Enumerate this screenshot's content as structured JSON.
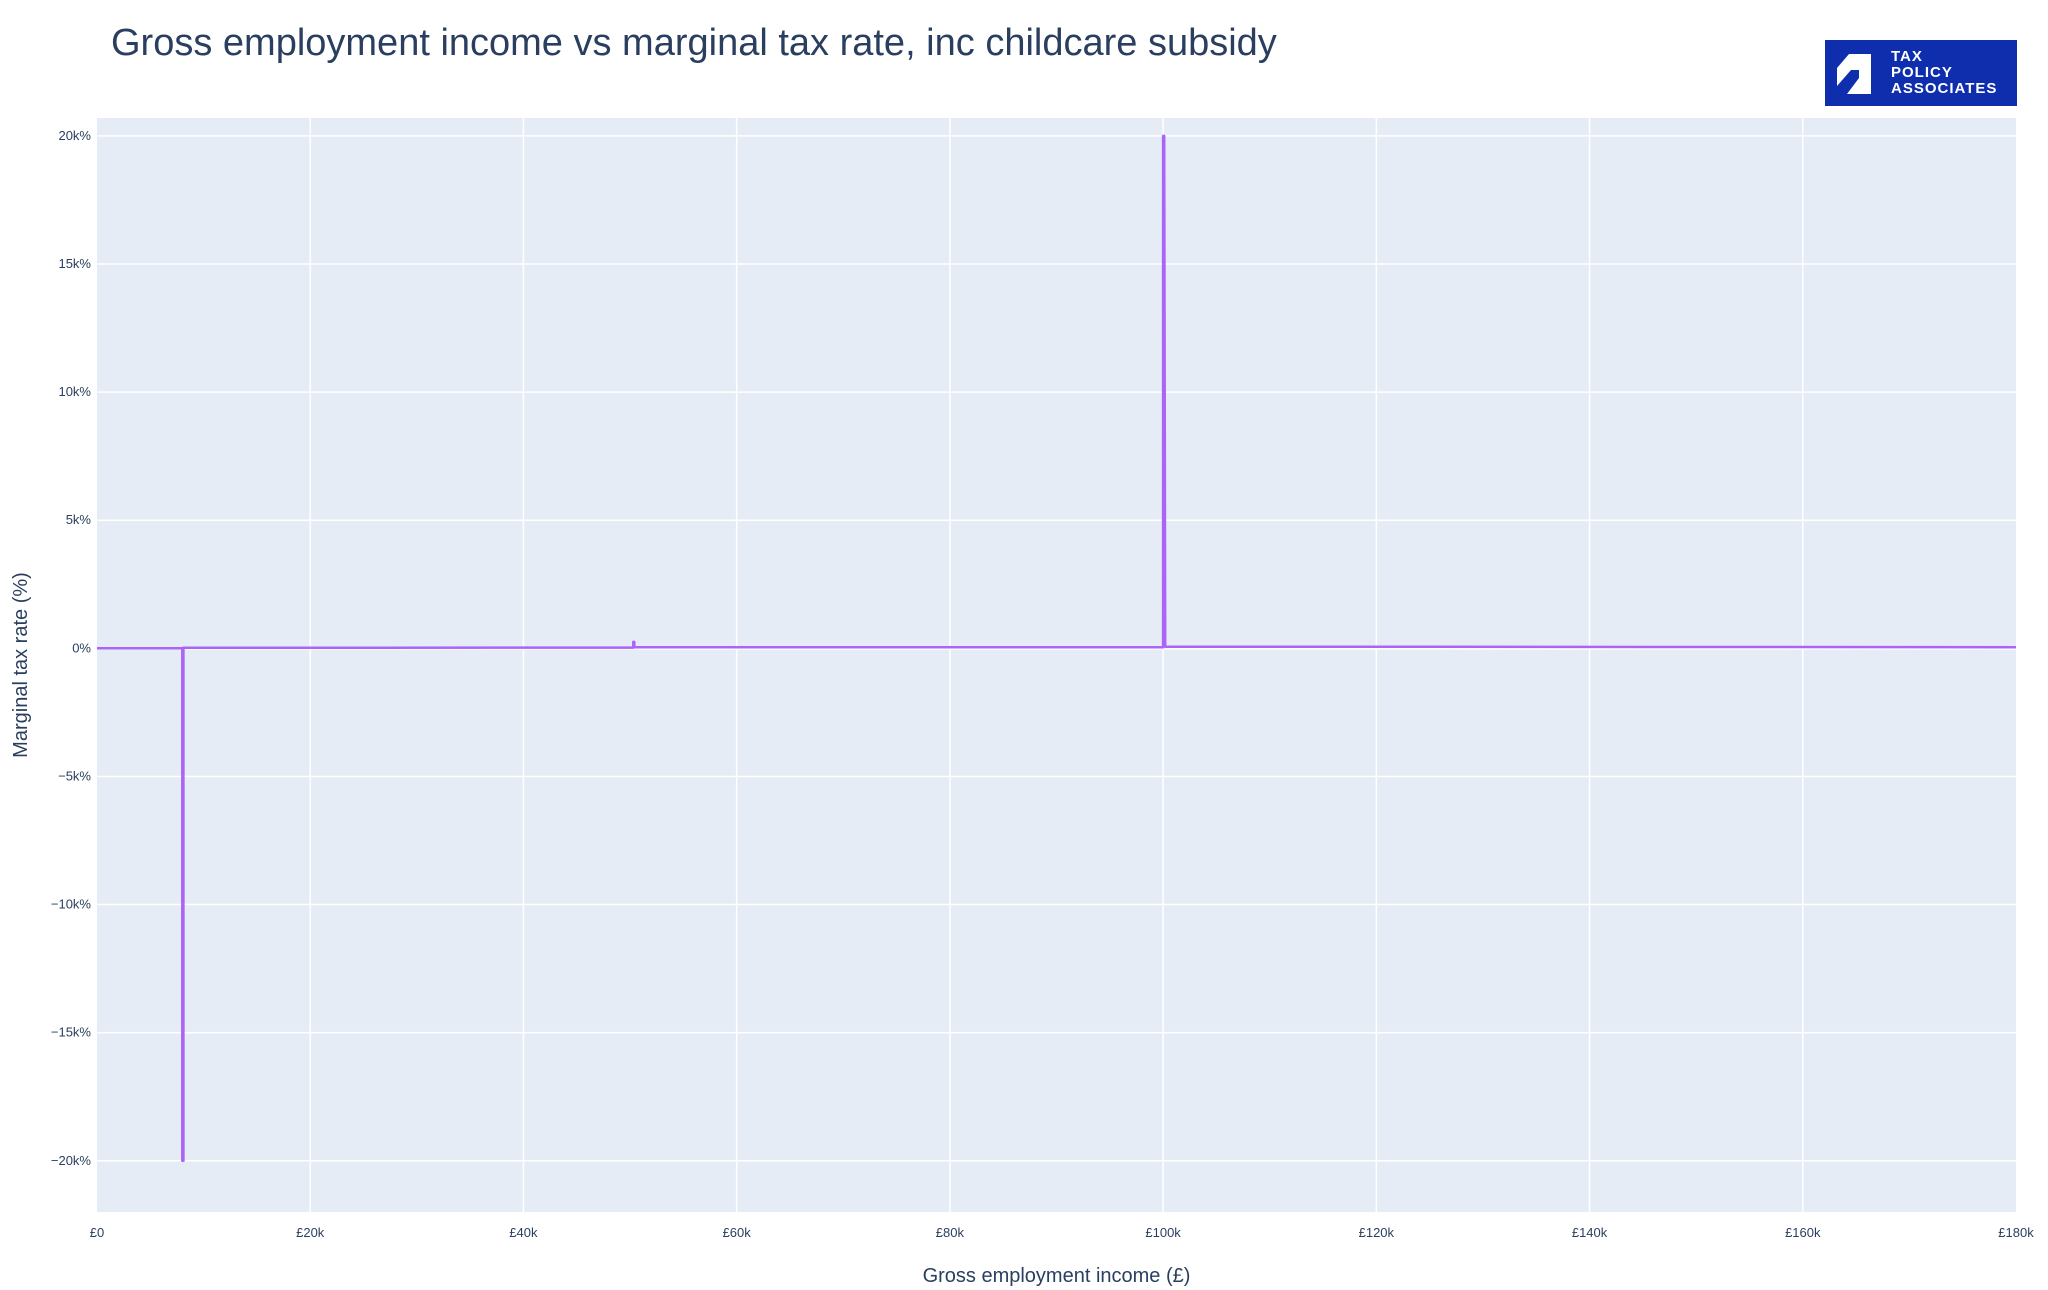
{
  "chart_data": {
    "type": "line",
    "title": "Gross employment income vs marginal tax rate, inc childcare subsidy",
    "xlabel": "Gross employment income (£)",
    "ylabel": "Marginal tax rate (%)",
    "xlim": [
      0,
      180000
    ],
    "ylim": [
      -22000,
      20700
    ],
    "xticks": [
      0,
      20000,
      40000,
      60000,
      80000,
      100000,
      120000,
      140000,
      160000,
      180000
    ],
    "xtick_labels": [
      "£0",
      "£20k",
      "£40k",
      "£60k",
      "£80k",
      "£100k",
      "£120k",
      "£140k",
      "£160k",
      "£180k"
    ],
    "yticks": [
      -20000,
      -15000,
      -10000,
      -5000,
      0,
      5000,
      10000,
      15000,
      20000
    ],
    "ytick_labels": [
      "−20k%",
      "−15k%",
      "−10k%",
      "−5k%",
      "0%",
      "5k%",
      "10k%",
      "15k%",
      "20k%"
    ],
    "grid": true,
    "line_color": "#ab63fa",
    "series": [
      {
        "x": [
          0,
          7900,
          8000,
          8000,
          8100,
          8100,
          12570,
          50200,
          50300,
          50300,
          50400,
          50400,
          99900,
          100000,
          100000,
          100100,
          100200,
          125140,
          180000
        ],
        "y": [
          0,
          0,
          0,
          -20000,
          -20000,
          20,
          20,
          30,
          30,
          250,
          250,
          40,
          40,
          40,
          20000,
          20000,
          62,
          62,
          45
        ]
      }
    ]
  },
  "logo": {
    "lines": [
      "TAX",
      "POLICY",
      "ASSOCIATES"
    ],
    "color": "#0e2ead"
  }
}
